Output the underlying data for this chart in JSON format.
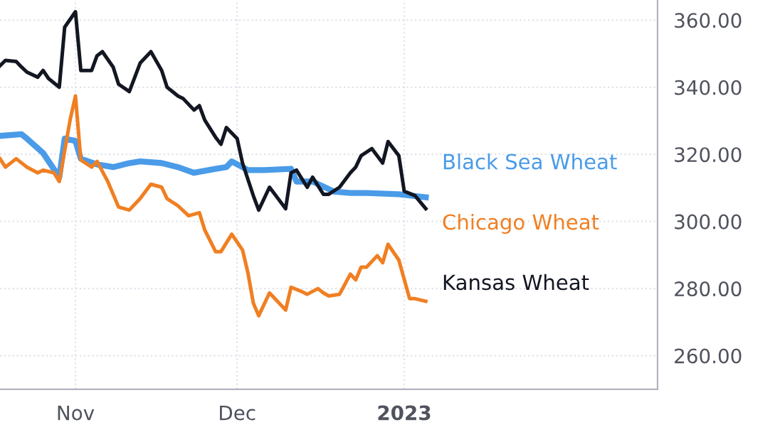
{
  "chart_data": {
    "type": "line",
    "xlim": [
      "2022-10-18",
      "2023-02-17"
    ],
    "xticks": [
      {
        "value": "2022-11-01",
        "label": "Nov"
      },
      {
        "value": "2022-12-01",
        "label": "Dec"
      },
      {
        "value": "2023-01-01",
        "label": "2023"
      }
    ],
    "ylim": [
      250,
      366
    ],
    "yticks": [
      {
        "value": 260,
        "label": "260.00"
      },
      {
        "value": 280,
        "label": "280.00"
      },
      {
        "value": 300,
        "label": "300.00"
      },
      {
        "value": 320,
        "label": "320.00"
      },
      {
        "value": 340,
        "label": "340.00"
      },
      {
        "value": 360,
        "label": "360.00"
      }
    ],
    "grid": true,
    "legend": false,
    "marker": "none",
    "line_style": "solid",
    "series": [
      {
        "name": "Black Sea Wheat",
        "color": "#4a9be8",
        "x": [
          "2022-10-18",
          "2022-10-22",
          "2022-10-23",
          "2022-10-26",
          "2022-10-29",
          "2022-10-30",
          "2022-11-01",
          "2022-11-02",
          "2022-11-05",
          "2022-11-08",
          "2022-11-11",
          "2022-11-13",
          "2022-11-17",
          "2022-11-20",
          "2022-11-23",
          "2022-11-27",
          "2022-11-29",
          "2022-11-30",
          "2022-12-03",
          "2022-12-06",
          "2022-12-11",
          "2022-12-12",
          "2022-12-15",
          "2022-12-19",
          "2022-12-22",
          "2022-12-25",
          "2022-12-31",
          "2023-01-05"
        ],
        "values": [
          325.5,
          326,
          324.7,
          320.4,
          313.2,
          324.7,
          324,
          318.7,
          317,
          316.2,
          317.4,
          317.9,
          317.4,
          316.2,
          314.5,
          315.7,
          316.2,
          317.9,
          315.3,
          315.3,
          315.7,
          311.9,
          311.9,
          308.9,
          308.5,
          308.5,
          308.1,
          307.2
        ]
      },
      {
        "name": "Chicago Wheat",
        "color": "#f07f22",
        "x": [
          "2022-10-18",
          "2022-10-19",
          "2022-10-21",
          "2022-10-23",
          "2022-10-25",
          "2022-10-26",
          "2022-10-28",
          "2022-10-29",
          "2022-10-31",
          "2022-11-01",
          "2022-11-02",
          "2022-11-04",
          "2022-11-05",
          "2022-11-07",
          "2022-11-09",
          "2022-11-11",
          "2022-11-13",
          "2022-11-15",
          "2022-11-17",
          "2022-11-18",
          "2022-11-20",
          "2022-11-22",
          "2022-11-24",
          "2022-11-25",
          "2022-11-27",
          "2022-11-28",
          "2022-11-30",
          "2022-12-02",
          "2022-12-03",
          "2022-12-04",
          "2022-12-05",
          "2022-12-07",
          "2022-12-08",
          "2022-12-10",
          "2022-12-11",
          "2022-12-13",
          "2022-12-14",
          "2022-12-16",
          "2022-12-17",
          "2022-12-18",
          "2022-12-20",
          "2022-12-22",
          "2022-12-23",
          "2022-12-24",
          "2022-12-25",
          "2022-12-27",
          "2022-12-28",
          "2022-12-29",
          "2022-12-31",
          "2023-01-02",
          "2023-01-03",
          "2023-01-05"
        ],
        "values": [
          318.7,
          316.2,
          318.7,
          316.2,
          314.5,
          315.3,
          314.5,
          311.9,
          330.2,
          337.4,
          318.3,
          316.2,
          317.9,
          311.9,
          304.3,
          303.4,
          306.8,
          311.1,
          310.2,
          306.8,
          304.7,
          301.7,
          302.6,
          297.4,
          291,
          291,
          296.2,
          291.5,
          284.7,
          275.7,
          271.9,
          278.7,
          277,
          273.6,
          280.4,
          279.1,
          278.3,
          280,
          278.7,
          277.8,
          278.3,
          284.3,
          282.6,
          286.4,
          286.4,
          289.8,
          287.7,
          293.2,
          288.5,
          277,
          277,
          276.2
        ]
      },
      {
        "name": "Kansas Wheat",
        "color": "#131722",
        "x": [
          "2022-10-18",
          "2022-10-19",
          "2022-10-21",
          "2022-10-22",
          "2022-10-23",
          "2022-10-25",
          "2022-10-26",
          "2022-10-27",
          "2022-10-29",
          "2022-10-30",
          "2022-11-01",
          "2022-11-02",
          "2022-11-04",
          "2022-11-05",
          "2022-11-06",
          "2022-11-08",
          "2022-11-09",
          "2022-11-11",
          "2022-11-13",
          "2022-11-15",
          "2022-11-17",
          "2022-11-18",
          "2022-11-20",
          "2022-11-21",
          "2022-11-23",
          "2022-11-24",
          "2022-11-25",
          "2022-11-27",
          "2022-11-28",
          "2022-11-29",
          "2022-12-01",
          "2022-12-02",
          "2022-12-04",
          "2022-12-05",
          "2022-12-07",
          "2022-12-08",
          "2022-12-10",
          "2022-12-11",
          "2022-12-12",
          "2022-12-14",
          "2022-12-15",
          "2022-12-17",
          "2022-12-18",
          "2022-12-20",
          "2022-12-22",
          "2022-12-23",
          "2022-12-24",
          "2022-12-26",
          "2022-12-28",
          "2022-12-29",
          "2022-12-31",
          "2023-01-01",
          "2023-01-03",
          "2023-01-05"
        ],
        "values": [
          346.4,
          348,
          347.7,
          346,
          344.5,
          343,
          345,
          342.6,
          340,
          357.9,
          362.5,
          345,
          345,
          349.4,
          350.6,
          346,
          340.9,
          338.7,
          347.2,
          350.6,
          345,
          340,
          337.4,
          336.6,
          333.2,
          334.5,
          330.2,
          325.1,
          323,
          328,
          324.7,
          317.4,
          307.7,
          303.4,
          310.2,
          308.1,
          303.8,
          314.5,
          315.3,
          310.2,
          313.2,
          308.1,
          308.1,
          310.2,
          314.5,
          316.2,
          319.6,
          321.7,
          317.4,
          323.8,
          319.6,
          309,
          307.7,
          303.8
        ]
      }
    ]
  }
}
